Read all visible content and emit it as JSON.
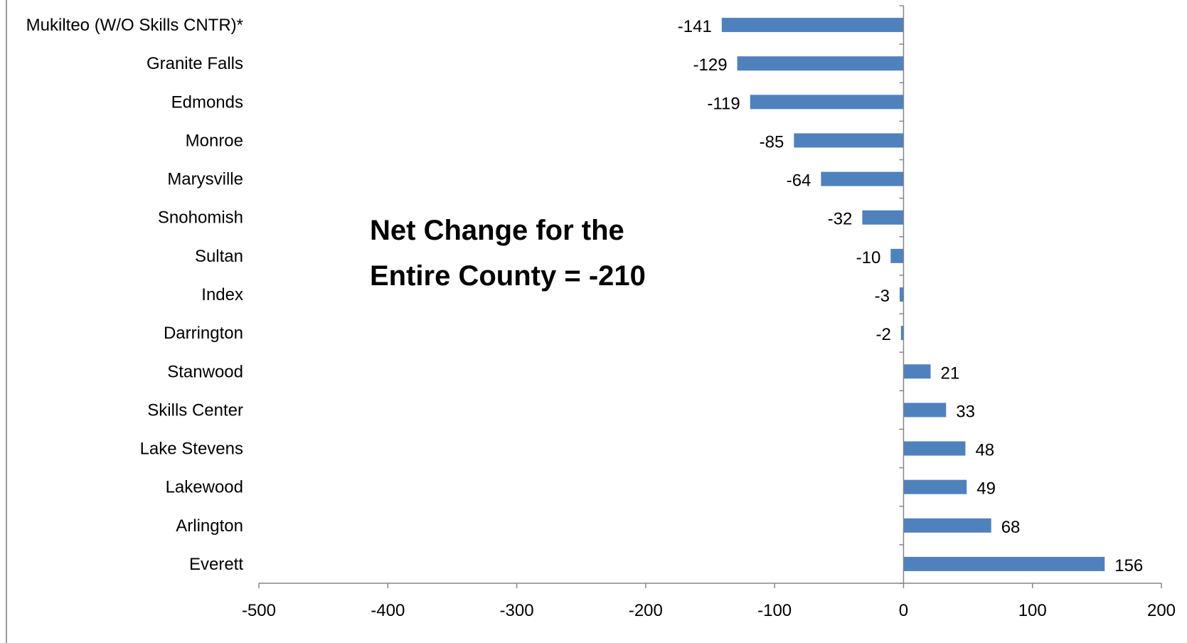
{
  "chart_data": {
    "type": "bar",
    "orientation": "horizontal",
    "title": "",
    "xlabel": "",
    "ylabel": "",
    "categories": [
      "Mukilteo (W/O Skills CNTR)*",
      "Granite Falls",
      "Edmonds",
      "Monroe",
      "Marysville",
      "Snohomish",
      "Sultan",
      "Index",
      "Darrington",
      "Stanwood",
      "Skills Center",
      "Lake Stevens",
      "Lakewood",
      "Arlington",
      "Everett"
    ],
    "values": [
      -141,
      -129,
      -119,
      -85,
      -64,
      -32,
      -10,
      -3,
      -2,
      21,
      33,
      48,
      49,
      68,
      156
    ],
    "value_labels": [
      "-141",
      "-129",
      "-119",
      "-85",
      "-64",
      "-32",
      "-10",
      "-3",
      "-2",
      "21",
      "33",
      "48",
      "49",
      "68",
      "156"
    ],
    "xlim": [
      -500,
      200
    ],
    "xticks": [
      -500,
      -400,
      -300,
      -200,
      -100,
      0,
      100,
      200
    ],
    "xtick_labels": [
      "-500",
      "-400",
      "-300",
      "-200",
      "-100",
      "0",
      "100",
      "200"
    ],
    "grid": false,
    "legend": "none",
    "bar_color": "#4f81bd",
    "annotation": {
      "line1": "Net Change for the",
      "line2": "Entire County = -210"
    }
  }
}
